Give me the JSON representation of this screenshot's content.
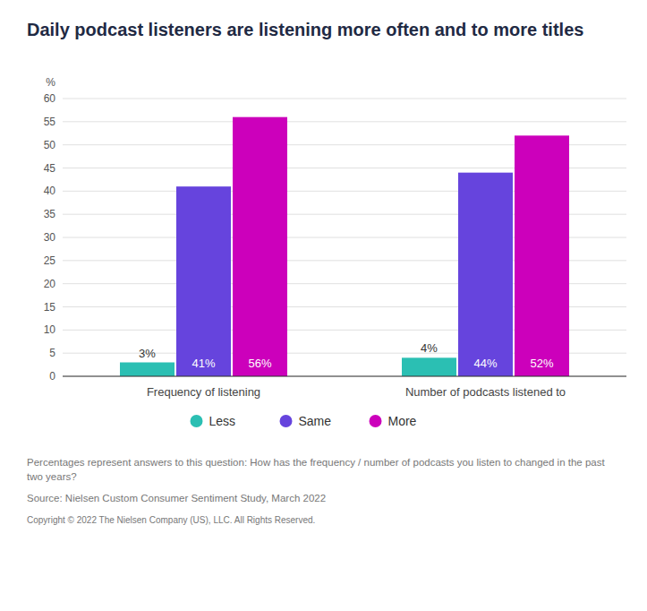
{
  "chart_data": {
    "type": "bar",
    "title": "Daily podcast listeners are listening more often and to more titles",
    "categories": [
      "Frequency of listening",
      "Number of podcasts listened to"
    ],
    "series": [
      {
        "name": "Less",
        "color": "#2bbfb3",
        "values": [
          3,
          4
        ],
        "value_labels": [
          "3%",
          "4%"
        ]
      },
      {
        "name": "Same",
        "color": "#6644dd",
        "values": [
          41,
          44
        ],
        "value_labels": [
          "41%",
          "44%"
        ]
      },
      {
        "name": "More",
        "color": "#cc00bb",
        "values": [
          56,
          52
        ],
        "value_labels": [
          "56%",
          "52%"
        ]
      }
    ],
    "ylabel": "%",
    "ylim": [
      0,
      60
    ],
    "yticks": [
      0,
      5,
      10,
      15,
      20,
      25,
      30,
      35,
      40,
      45,
      50,
      55,
      60
    ],
    "grid": true,
    "legend": "bottom",
    "data_labels": true,
    "annotations": [
      "Percentages represent answers to this question: How has the frequency / number of podcasts you listen to changed in the past two years?",
      "Source: Nielsen Custom Consumer Sentiment Study, March 2022",
      "Copyright © 2022 The Nielsen Company (US), LLC. All Rights Reserved."
    ]
  }
}
